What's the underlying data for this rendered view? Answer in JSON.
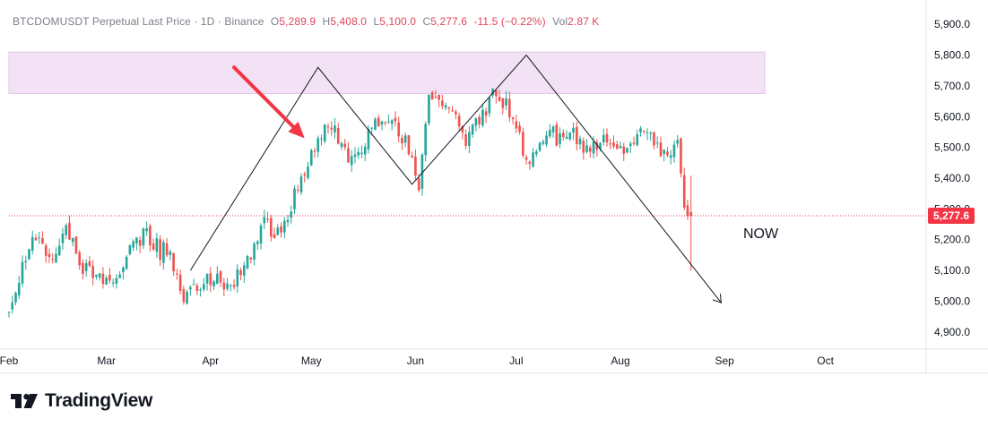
{
  "legend": {
    "symbol": "BTCDOMUSDT Perpetual Last Price · 1D · Binance",
    "o_label": "O",
    "o_value": "5,289.9",
    "h_label": "H",
    "h_value": "5,408.0",
    "l_label": "L",
    "l_value": "5,100.0",
    "c_label": "C",
    "c_value": "5,277.6",
    "change": "-11.5 (−0.22%)",
    "vol_label": "Vol",
    "vol_value": "2.87 K"
  },
  "annotation": {
    "now": "NOW"
  },
  "branding": {
    "name": "TradingView",
    "icon": "tradingview-logo-icon"
  },
  "colors": {
    "up": "#26a69a",
    "down": "#ef5350",
    "zone": "#f3e1f5",
    "price_tag": "#f23645"
  },
  "chart_data": {
    "type": "candlestick",
    "title": "BTCDOMUSDT Perpetual Last Price · 1D · Binance",
    "ylim": [
      4850,
      5950
    ],
    "yticks": [
      "4,900.0",
      "5,000.0",
      "5,100.0",
      "5,200.0",
      "5,300.0",
      "5,400.0",
      "5,500.0",
      "5,600.0",
      "5,700.0",
      "5,800.0",
      "5,900.0"
    ],
    "ytick_values": [
      4900,
      5000,
      5100,
      5200,
      5300,
      5400,
      5500,
      5600,
      5700,
      5800,
      5900
    ],
    "x_start": "2024-02-01",
    "x_end": "2024-10-31",
    "xticks": [
      {
        "date": "2024-02-01",
        "label": "Feb"
      },
      {
        "date": "2024-03-01",
        "label": "Mar"
      },
      {
        "date": "2024-04-01",
        "label": "Apr"
      },
      {
        "date": "2024-05-01",
        "label": "May"
      },
      {
        "date": "2024-06-01",
        "label": "Jun"
      },
      {
        "date": "2024-07-01",
        "label": "Jul"
      },
      {
        "date": "2024-08-01",
        "label": "Aug"
      },
      {
        "date": "2024-09-01",
        "label": "Sep"
      },
      {
        "date": "2024-10-01",
        "label": "Oct"
      }
    ],
    "last_price": 5277.6,
    "last_price_label": "5,277.6",
    "zone": {
      "from": "2024-02-01",
      "to": "2024-09-13",
      "low": 5675,
      "high": 5810
    },
    "pattern_line": [
      {
        "date": "2024-03-26",
        "value": 5100
      },
      {
        "date": "2024-05-03",
        "value": 5760
      },
      {
        "date": "2024-05-31",
        "value": 5380
      },
      {
        "date": "2024-07-04",
        "value": 5800
      },
      {
        "date": "2024-08-31",
        "value": 4995
      }
    ],
    "arrow_from": {
      "date": "2024-04-08",
      "value": 5760
    },
    "arrow_to": {
      "date": "2024-04-29",
      "value": 5530
    },
    "anchors": [
      [
        "2024-02-01",
        4970
      ],
      [
        "2024-02-05",
        5120
      ],
      [
        "2024-02-09",
        5210
      ],
      [
        "2024-02-13",
        5150
      ],
      [
        "2024-02-18",
        5220
      ],
      [
        "2024-02-23",
        5110
      ],
      [
        "2024-02-28",
        5080
      ],
      [
        "2024-03-04",
        5060
      ],
      [
        "2024-03-08",
        5180
      ],
      [
        "2024-03-13",
        5220
      ],
      [
        "2024-03-17",
        5160
      ],
      [
        "2024-03-20",
        5180
      ],
      [
        "2024-03-23",
        5020
      ],
      [
        "2024-03-28",
        5050
      ],
      [
        "2024-04-02",
        5080
      ],
      [
        "2024-04-07",
        5060
      ],
      [
        "2024-04-12",
        5130
      ],
      [
        "2024-04-17",
        5250
      ],
      [
        "2024-04-22",
        5220
      ],
      [
        "2024-04-26",
        5340
      ],
      [
        "2024-04-30",
        5440
      ],
      [
        "2024-05-04",
        5540
      ],
      [
        "2024-05-07",
        5560
      ],
      [
        "2024-05-12",
        5480
      ],
      [
        "2024-05-17",
        5520
      ],
      [
        "2024-05-22",
        5600
      ],
      [
        "2024-05-26",
        5580
      ],
      [
        "2024-05-30",
        5490
      ],
      [
        "2024-06-02",
        5370
      ],
      [
        "2024-06-05",
        5690
      ],
      [
        "2024-06-09",
        5630
      ],
      [
        "2024-06-13",
        5580
      ],
      [
        "2024-06-16",
        5520
      ],
      [
        "2024-06-20",
        5590
      ],
      [
        "2024-06-25",
        5680
      ],
      [
        "2024-06-30",
        5600
      ],
      [
        "2024-07-04",
        5450
      ],
      [
        "2024-07-06",
        5480
      ],
      [
        "2024-07-10",
        5560
      ],
      [
        "2024-07-14",
        5520
      ],
      [
        "2024-07-18",
        5540
      ],
      [
        "2024-07-23",
        5490
      ],
      [
        "2024-07-28",
        5520
      ],
      [
        "2024-08-02",
        5480
      ],
      [
        "2024-08-07",
        5560
      ],
      [
        "2024-08-11",
        5510
      ],
      [
        "2024-08-15",
        5450
      ],
      [
        "2024-08-18",
        5520
      ],
      [
        "2024-08-20",
        5310
      ],
      [
        "2024-08-22",
        5277.6
      ]
    ]
  }
}
